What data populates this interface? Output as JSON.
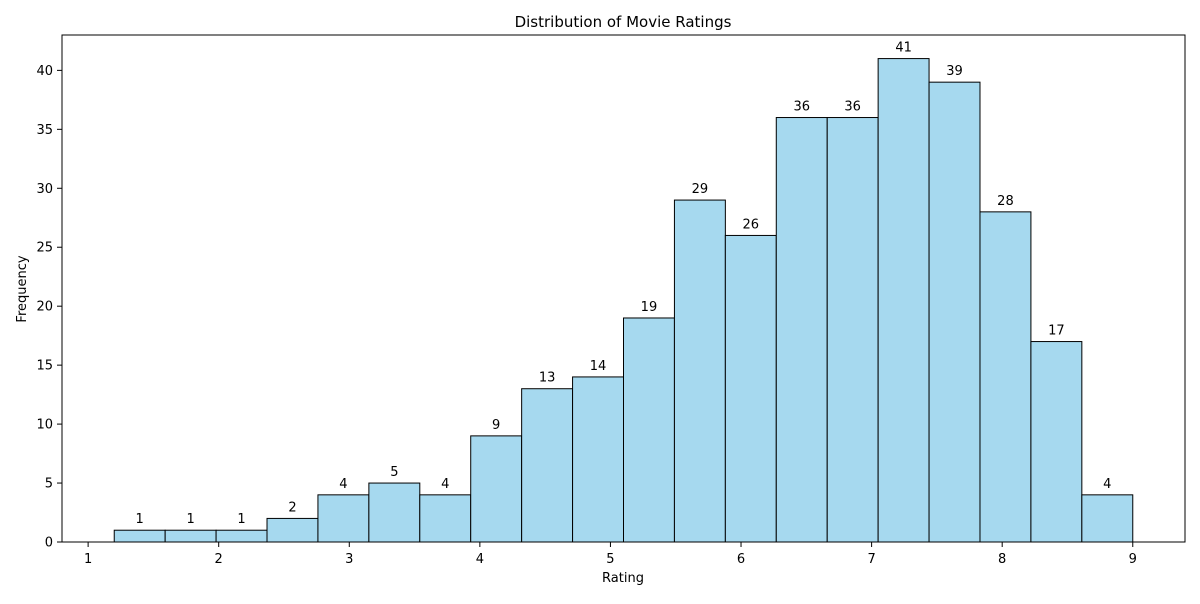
{
  "chart_data": {
    "type": "bar",
    "title": "Distribution of Movie Ratings",
    "xlabel": "Rating",
    "ylabel": "Frequency",
    "bins": [
      {
        "x0": 1.2,
        "x1": 1.59,
        "value": 1
      },
      {
        "x0": 1.59,
        "x1": 1.98,
        "value": 1
      },
      {
        "x0": 1.98,
        "x1": 2.37,
        "value": 1
      },
      {
        "x0": 2.37,
        "x1": 2.76,
        "value": 2
      },
      {
        "x0": 2.76,
        "x1": 3.15,
        "value": 4
      },
      {
        "x0": 3.15,
        "x1": 3.54,
        "value": 5
      },
      {
        "x0": 3.54,
        "x1": 3.93,
        "value": 4
      },
      {
        "x0": 3.93,
        "x1": 4.32,
        "value": 9
      },
      {
        "x0": 4.32,
        "x1": 4.71,
        "value": 13
      },
      {
        "x0": 4.71,
        "x1": 5.1,
        "value": 14
      },
      {
        "x0": 5.1,
        "x1": 5.49,
        "value": 19
      },
      {
        "x0": 5.49,
        "x1": 5.88,
        "value": 29
      },
      {
        "x0": 5.88,
        "x1": 6.27,
        "value": 26
      },
      {
        "x0": 6.27,
        "x1": 6.66,
        "value": 36
      },
      {
        "x0": 6.66,
        "x1": 7.05,
        "value": 36
      },
      {
        "x0": 7.05,
        "x1": 7.44,
        "value": 41
      },
      {
        "x0": 7.44,
        "x1": 7.83,
        "value": 39
      },
      {
        "x0": 7.83,
        "x1": 8.22,
        "value": 28
      },
      {
        "x0": 8.22,
        "x1": 8.61,
        "value": 17
      },
      {
        "x0": 8.61,
        "x1": 9.0,
        "value": 4
      }
    ],
    "xticks": [
      1,
      2,
      3,
      4,
      5,
      6,
      7,
      8,
      9
    ],
    "yticks": [
      0,
      5,
      10,
      15,
      20,
      25,
      30,
      35,
      40
    ],
    "xlim": [
      0.8,
      9.4
    ],
    "ylim": [
      0,
      43
    ],
    "grid": false,
    "bar_color": "#a6d9ef",
    "edge_color": "#000000"
  }
}
